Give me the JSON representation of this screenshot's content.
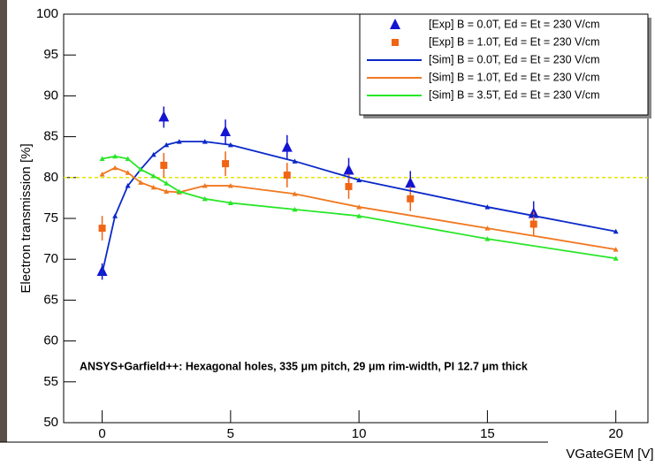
{
  "chart_data": {
    "type": "line",
    "y_label": "Electron transmission [%]",
    "x_label": "VGateGEM [V]",
    "annotation": "ANSYS+Garfield++: Hexagonal holes, 335 μm pitch, 29 μm rim-width, PI 12.7 μm thick",
    "xlim": [
      -1.5,
      21.25
    ],
    "ylim": [
      50,
      100
    ],
    "xticks": [
      0,
      5,
      10,
      15,
      20
    ],
    "yticks": [
      50,
      55,
      60,
      65,
      70,
      75,
      80,
      85,
      90,
      95,
      100
    ],
    "legend": "top-right",
    "hline": {
      "value": 80,
      "color": "#e6e600"
    },
    "series": [
      {
        "name": "[Exp] B = 0.0T, Ed = Et = 230 V/cm",
        "color": "#1414d2",
        "marker": "triangle",
        "x": [
          0,
          2.4,
          4.8,
          7.2,
          9.6,
          12,
          16.8
        ],
        "values": [
          68.5,
          87.4,
          85.6,
          83.7,
          80.9,
          79.3,
          75.6
        ],
        "errors": [
          1.0,
          1.3,
          1.5,
          1.5,
          1.5,
          1.5,
          1.5
        ]
      },
      {
        "name": "[Exp] B = 1.0T, Ed = Et = 230 V/cm",
        "color": "#f06414",
        "marker": "square",
        "x": [
          0,
          2.4,
          4.8,
          7.2,
          9.6,
          12,
          16.8
        ],
        "values": [
          73.8,
          81.5,
          81.7,
          80.3,
          78.9,
          77.4,
          74.3
        ],
        "errors": [
          1.5,
          1.5,
          1.5,
          1.5,
          1.5,
          1.5,
          1.5
        ]
      },
      {
        "name": "[Sim] B = 0.0T, Ed = Et = 230 V/cm",
        "color": "#0a28c8",
        "marker": "line",
        "x": [
          0,
          0.5,
          1,
          1.5,
          2,
          2.5,
          3,
          4,
          5,
          7.5,
          10,
          15,
          20
        ],
        "values": [
          68.3,
          75.3,
          79,
          81,
          82.8,
          84,
          84.4,
          84.4,
          84,
          82,
          79.7,
          76.4,
          73.4
        ]
      },
      {
        "name": "[Sim] B = 1.0T, Ed = Et = 230 V/cm",
        "color": "#f07820",
        "marker": "line",
        "x": [
          0,
          0.5,
          1,
          1.5,
          2,
          2.5,
          3,
          4,
          5,
          7.5,
          10,
          15,
          20
        ],
        "values": [
          80.4,
          81.2,
          80.6,
          79.4,
          78.8,
          78.3,
          78.2,
          79,
          79,
          78,
          76.4,
          73.8,
          71.2
        ]
      },
      {
        "name": "[Sim] B = 3.5T, Ed = Et = 230 V/cm",
        "color": "#28e628",
        "marker": "line",
        "x": [
          0,
          0.5,
          1,
          1.5,
          2,
          2.5,
          3,
          4,
          5,
          7.5,
          10,
          15,
          20
        ],
        "values": [
          82.3,
          82.6,
          82.3,
          81,
          80.2,
          79.3,
          78.3,
          77.4,
          76.9,
          76.1,
          75.3,
          72.5,
          70.1
        ]
      }
    ]
  }
}
